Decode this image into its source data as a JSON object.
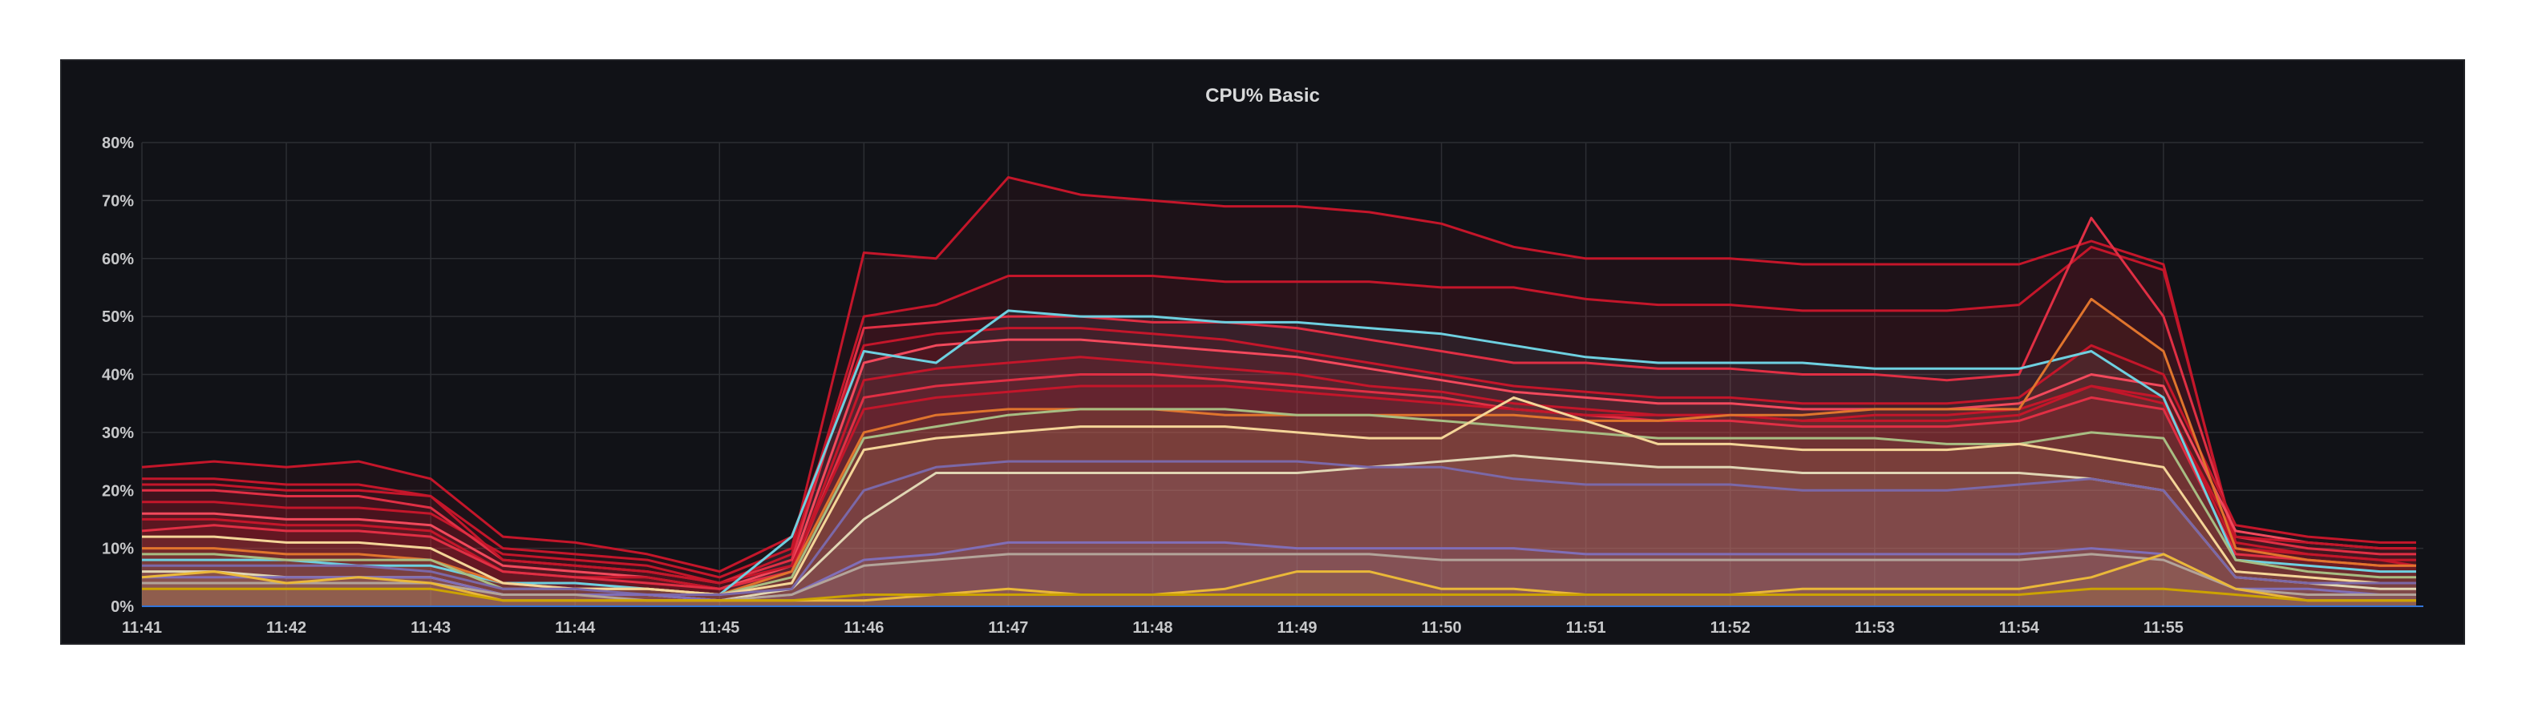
{
  "panel": {
    "title": "CPU% Basic"
  },
  "chart_data": {
    "type": "line",
    "title": "CPU% Basic",
    "xlabel": "",
    "ylabel": "",
    "ylim": [
      0,
      80
    ],
    "xlim_minutes": [
      0,
      15.8
    ],
    "grid": true,
    "legend": "none",
    "y_tick_labels": [
      "0%",
      "10%",
      "20%",
      "30%",
      "40%",
      "50%",
      "60%",
      "70%",
      "80%"
    ],
    "x_tick_labels": [
      "11:41",
      "11:42",
      "11:43",
      "11:44",
      "11:45",
      "11:46",
      "11:47",
      "11:48",
      "11:49",
      "11:50",
      "11:51",
      "11:52",
      "11:53",
      "11:54",
      "11:55"
    ],
    "x_minutes": [
      0,
      0.5,
      1,
      1.5,
      2,
      2.5,
      3,
      3.5,
      4,
      4.5,
      5,
      5.5,
      6,
      6.5,
      7,
      7.5,
      8,
      8.5,
      9,
      9.5,
      10,
      10.5,
      11,
      11.5,
      12,
      12.5,
      13,
      13.5,
      14,
      14.5,
      15,
      15.5,
      15.75
    ],
    "series": [
      {
        "color": "#c4162a",
        "values": [
          22,
          22,
          21,
          21,
          19,
          10,
          9,
          8,
          5,
          10,
          61,
          60,
          74,
          71,
          70,
          69,
          69,
          68,
          66,
          62,
          60,
          60,
          60,
          59,
          59,
          59,
          59,
          63,
          59,
          10,
          8,
          7,
          7
        ]
      },
      {
        "color": "#c4162a",
        "values": [
          18,
          18,
          17,
          17,
          16,
          9,
          8,
          7,
          4,
          9,
          50,
          52,
          57,
          57,
          57,
          56,
          56,
          56,
          55,
          55,
          53,
          52,
          52,
          51,
          51,
          51,
          52,
          62,
          58,
          11,
          9,
          8,
          7
        ]
      },
      {
        "color": "#e02f44",
        "values": [
          20,
          20,
          19,
          19,
          17,
          8,
          7,
          6,
          4,
          8,
          48,
          49,
          50,
          50,
          49,
          49,
          48,
          46,
          44,
          42,
          42,
          41,
          41,
          40,
          40,
          39,
          40,
          67,
          50,
          12,
          10,
          9,
          9
        ]
      },
      {
        "color": "#c4162a",
        "values": [
          24,
          25,
          24,
          25,
          22,
          12,
          11,
          9,
          6,
          12,
          45,
          47,
          48,
          48,
          47,
          46,
          44,
          42,
          40,
          38,
          37,
          36,
          36,
          35,
          35,
          35,
          36,
          45,
          40,
          14,
          12,
          11,
          11
        ]
      },
      {
        "color": "#f2495c",
        "values": [
          16,
          16,
          15,
          15,
          14,
          7,
          6,
          5,
          3,
          7,
          42,
          45,
          46,
          46,
          45,
          44,
          43,
          41,
          39,
          37,
          36,
          35,
          35,
          34,
          34,
          34,
          35,
          40,
          38,
          13,
          11,
          10,
          10
        ]
      },
      {
        "color": "#c4162a",
        "values": [
          15,
          15,
          14,
          14,
          13,
          6,
          5,
          5,
          3,
          6,
          39,
          41,
          42,
          43,
          42,
          41,
          40,
          38,
          37,
          35,
          34,
          33,
          33,
          32,
          32,
          32,
          33,
          38,
          36,
          10,
          9,
          8,
          8
        ]
      },
      {
        "color": "#e02f44",
        "values": [
          13,
          14,
          13,
          13,
          12,
          6,
          5,
          4,
          3,
          6,
          36,
          38,
          39,
          40,
          40,
          39,
          38,
          37,
          36,
          34,
          33,
          32,
          32,
          31,
          31,
          31,
          32,
          36,
          34,
          9,
          8,
          7,
          7
        ]
      },
      {
        "color": "#c4162a",
        "values": [
          21,
          21,
          20,
          20,
          19,
          8,
          7,
          6,
          4,
          7,
          34,
          36,
          37,
          38,
          38,
          38,
          37,
          36,
          35,
          34,
          33,
          33,
          33,
          32,
          33,
          33,
          34,
          38,
          35,
          12,
          11,
          10,
          10
        ]
      },
      {
        "color": "#6ed0e0",
        "values": [
          8,
          8,
          8,
          7,
          7,
          4,
          4,
          3,
          2,
          12,
          44,
          42,
          51,
          50,
          50,
          49,
          49,
          48,
          47,
          45,
          43,
          42,
          42,
          42,
          41,
          41,
          41,
          44,
          36,
          8,
          7,
          6,
          6
        ]
      },
      {
        "color": "#e0752d",
        "values": [
          10,
          10,
          9,
          9,
          8,
          4,
          3,
          3,
          2,
          6,
          30,
          33,
          34,
          34,
          34,
          33,
          33,
          33,
          33,
          33,
          32,
          32,
          33,
          33,
          34,
          34,
          34,
          53,
          44,
          10,
          8,
          7,
          7
        ]
      },
      {
        "color": "#a8bd83",
        "values": [
          9,
          9,
          8,
          8,
          8,
          3,
          3,
          3,
          2,
          5,
          29,
          31,
          33,
          34,
          34,
          34,
          33,
          33,
          32,
          31,
          30,
          29,
          29,
          29,
          29,
          28,
          28,
          30,
          29,
          8,
          6,
          5,
          5
        ]
      },
      {
        "color": "#f4d598",
        "values": [
          12,
          12,
          11,
          11,
          10,
          4,
          3,
          3,
          2,
          4,
          27,
          29,
          30,
          31,
          31,
          31,
          30,
          29,
          29,
          36,
          32,
          28,
          28,
          27,
          27,
          27,
          28,
          26,
          24,
          6,
          5,
          4,
          4
        ]
      },
      {
        "color": "#e0d6b4",
        "values": [
          6,
          6,
          5,
          5,
          5,
          2,
          2,
          2,
          1,
          3,
          15,
          23,
          23,
          23,
          23,
          23,
          23,
          24,
          25,
          26,
          25,
          24,
          24,
          23,
          23,
          23,
          23,
          22,
          20,
          5,
          4,
          3,
          3
        ]
      },
      {
        "color": "#7b68a8",
        "values": [
          7,
          7,
          7,
          7,
          6,
          3,
          3,
          2,
          2,
          3,
          20,
          24,
          25,
          25,
          25,
          25,
          25,
          24,
          24,
          22,
          21,
          21,
          21,
          20,
          20,
          20,
          21,
          22,
          20,
          5,
          4,
          4,
          4
        ]
      },
      {
        "color": "#806eb7",
        "values": [
          5,
          5,
          5,
          5,
          5,
          2,
          2,
          2,
          1,
          2,
          8,
          9,
          11,
          11,
          11,
          11,
          10,
          10,
          10,
          10,
          9,
          9,
          9,
          9,
          9,
          9,
          9,
          10,
          9,
          3,
          3,
          2,
          2
        ]
      },
      {
        "color": "#b3a49a",
        "values": [
          4,
          4,
          4,
          4,
          4,
          2,
          2,
          1,
          1,
          2,
          7,
          8,
          9,
          9,
          9,
          9,
          9,
          9,
          8,
          8,
          8,
          8,
          8,
          8,
          8,
          8,
          8,
          9,
          8,
          3,
          2,
          2,
          2
        ]
      },
      {
        "color": "#eab839",
        "values": [
          5,
          6,
          4,
          5,
          4,
          1,
          1,
          1,
          1,
          1,
          1,
          2,
          3,
          2,
          2,
          3,
          6,
          6,
          3,
          3,
          2,
          2,
          2,
          3,
          3,
          3,
          3,
          5,
          9,
          3,
          1,
          1,
          1
        ]
      },
      {
        "color": "#cca300",
        "values": [
          3,
          3,
          3,
          3,
          3,
          1,
          1,
          1,
          1,
          1,
          2,
          2,
          2,
          2,
          2,
          2,
          2,
          2,
          2,
          2,
          2,
          2,
          2,
          2,
          2,
          2,
          2,
          3,
          3,
          2,
          1,
          1,
          1
        ]
      }
    ]
  }
}
